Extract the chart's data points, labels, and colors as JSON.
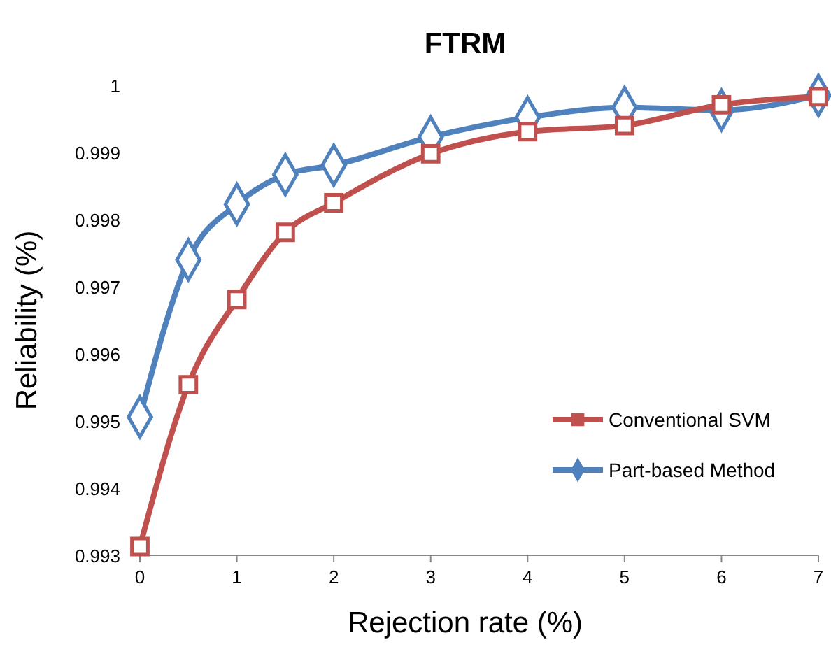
{
  "chart_data": {
    "type": "line",
    "title": "FTRM",
    "xlabel": "Rejection rate (%)",
    "ylabel": "Reliability (%)",
    "x": [
      0,
      0.5,
      1,
      1.5,
      2,
      3,
      4,
      5,
      6,
      7
    ],
    "series": [
      {
        "name": "Conventional SVM",
        "color": "#c0504d",
        "marker": "square",
        "values": [
          0.99313,
          0.99554,
          0.99681,
          0.99781,
          0.99825,
          0.99898,
          0.99931,
          0.9994,
          0.99971,
          0.99983
        ]
      },
      {
        "name": "Part-based Method",
        "color": "#4f81bd",
        "marker": "diamond",
        "values": [
          0.99506,
          0.9974,
          0.99823,
          0.99867,
          0.99881,
          0.99923,
          0.99952,
          0.99967,
          0.99963,
          0.99985
        ]
      }
    ],
    "xlim": [
      0,
      7
    ],
    "xticks": [
      0,
      1,
      2,
      3,
      4,
      5,
      6,
      7
    ],
    "ylim": [
      0.993,
      1
    ],
    "yticks": [
      0.993,
      0.994,
      0.995,
      0.996,
      0.997,
      0.998,
      0.999,
      1
    ],
    "grid": false,
    "legend": "bottom right",
    "line_style": "solid"
  }
}
